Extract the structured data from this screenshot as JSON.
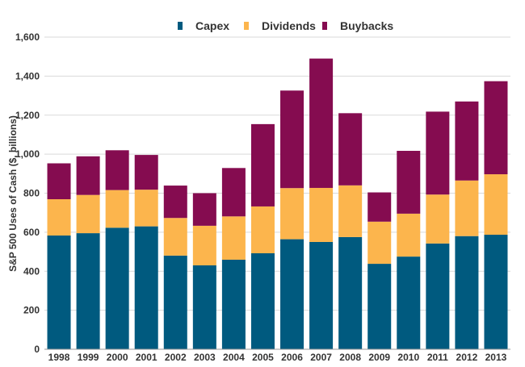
{
  "chart_data": {
    "type": "bar",
    "stacked": true,
    "categories": [
      "1998",
      "1999",
      "2000",
      "2001",
      "2002",
      "2003",
      "2004",
      "2005",
      "2006",
      "2007",
      "2008",
      "2009",
      "2010",
      "2011",
      "2012",
      "2013"
    ],
    "series": [
      {
        "name": "Capex",
        "color": "#005a7f",
        "values": [
          583,
          595,
          623,
          630,
          480,
          430,
          459,
          492,
          564,
          550,
          575,
          438,
          475,
          542,
          580,
          587
        ]
      },
      {
        "name": "Dividends",
        "color": "#fcb54d",
        "values": [
          186,
          196,
          193,
          188,
          193,
          203,
          222,
          240,
          262,
          277,
          265,
          216,
          220,
          251,
          285,
          310
        ]
      },
      {
        "name": "Buybacks",
        "color": "#850c50",
        "values": [
          184,
          198,
          204,
          178,
          166,
          167,
          248,
          422,
          500,
          663,
          370,
          150,
          322,
          425,
          405,
          477
        ]
      }
    ],
    "ylabel": "S&P 500 Uses of Cash ($, billions)",
    "ylim": [
      0,
      1600
    ],
    "yticks": [
      0,
      200,
      400,
      600,
      800,
      1000,
      1200,
      1400,
      1600
    ],
    "ytick_labels": [
      "0",
      "200",
      "400",
      "600",
      "800",
      "1,000",
      "1,200",
      "1,400",
      "1,600"
    ],
    "grid": true,
    "legend_position": "top"
  }
}
